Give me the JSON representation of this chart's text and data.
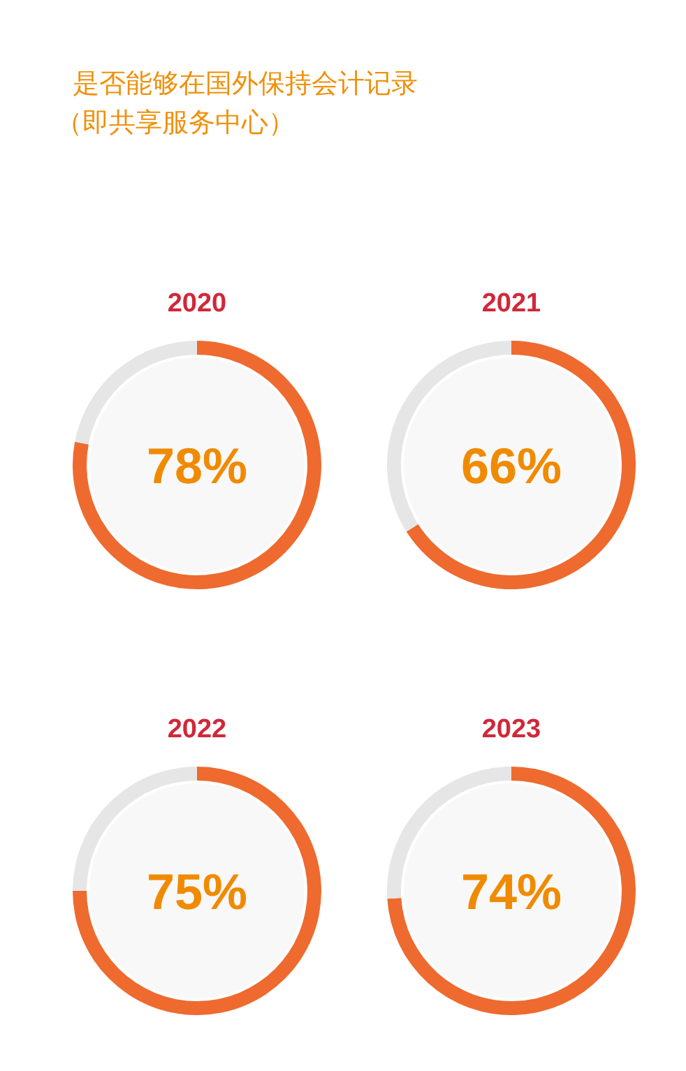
{
  "chart_data": [
    {
      "type": "donut",
      "title": "2020",
      "annotations": [
        "是否能够在国外保持会计记录",
        "（即共享服务中心）"
      ],
      "categories": [
        null,
        null
      ],
      "values": [
        78,
        22
      ],
      "colors": [
        "#ee6a2e",
        "#e6e6e6"
      ],
      "value_labels": [
        "78%",
        null
      ]
    },
    {
      "type": "donut",
      "title": "2021",
      "categories": [
        null,
        null
      ],
      "values": [
        66,
        34
      ],
      "colors": [
        "#ee6a2e",
        "#e6e6e6"
      ],
      "value_labels": [
        "66%",
        null
      ]
    },
    {
      "type": "donut",
      "title": "2022",
      "categories": [
        null,
        null
      ],
      "values": [
        75,
        25
      ],
      "colors": [
        "#ee6a2e",
        "#e6e6e6"
      ],
      "value_labels": [
        "75%",
        null
      ]
    },
    {
      "type": "donut",
      "title": "2023",
      "categories": [
        null,
        null
      ],
      "values": [
        74,
        26
      ],
      "colors": [
        "#ee6a2e",
        "#e6e6e6"
      ],
      "value_labels": [
        "74%",
        null
      ]
    }
  ]
}
